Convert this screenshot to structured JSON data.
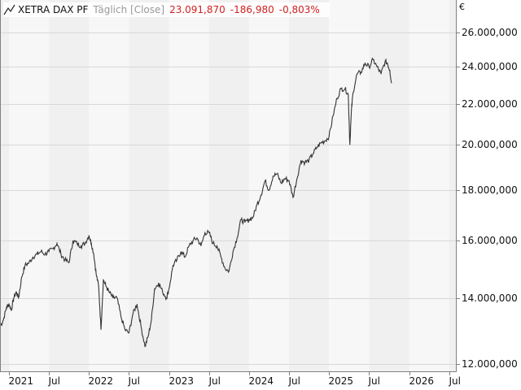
{
  "header": {
    "instrument": "XETRA DAX PF",
    "frequency": "Täglich [Close]",
    "last": "23.091,870",
    "change": "-186,980",
    "change_pct": "-0,803%",
    "icon": "line-chart-icon"
  },
  "colors": {
    "line": "#333333",
    "change": "#d42020",
    "band_dark": "#f0f0f0",
    "band_light": "#f7f7f7",
    "grid": "#d8d8d8",
    "frame": "#808080"
  },
  "chart_data": {
    "type": "line",
    "title": "XETRA DAX PF Täglich [Close]",
    "currency": "€",
    "yscale": "log",
    "ylim": [
      11800,
      26500
    ],
    "yticks": [
      12000,
      14000,
      16000,
      18000,
      20000,
      22000,
      24000,
      26000
    ],
    "ytick_labels": [
      "12.000,000",
      "14.000,000",
      "16.000,000",
      "18.000,000",
      "20.000,000",
      "22.000,000",
      "24.000,000",
      "26.000,000"
    ],
    "xtick_labels": [
      "2021",
      "Jul",
      "2022",
      "Jul",
      "2023",
      "Jul",
      "2024",
      "Jul",
      "2025",
      "Jul",
      "2026",
      "Jul"
    ],
    "xtick_t": [
      2021.0,
      2021.5,
      2022.0,
      2022.5,
      2023.0,
      2023.5,
      2024.0,
      2024.5,
      2025.0,
      2025.5,
      2026.0,
      2026.5
    ],
    "series": [
      {
        "name": "XETRA DAX PF",
        "t": [
          2020.89,
          2020.93,
          2020.97,
          2021.0,
          2021.03,
          2021.06,
          2021.09,
          2021.12,
          2021.16,
          2021.2,
          2021.25,
          2021.3,
          2021.35,
          2021.4,
          2021.45,
          2021.5,
          2021.55,
          2021.6,
          2021.65,
          2021.7,
          2021.75,
          2021.8,
          2021.85,
          2021.9,
          2021.95,
          2022.0,
          2022.03,
          2022.06,
          2022.09,
          2022.12,
          2022.15,
          2022.18,
          2022.21,
          2022.25,
          2022.3,
          2022.35,
          2022.4,
          2022.45,
          2022.5,
          2022.55,
          2022.6,
          2022.65,
          2022.7,
          2022.74,
          2022.78,
          2022.82,
          2022.87,
          2022.92,
          2022.97,
          2023.0,
          2023.05,
          2023.1,
          2023.15,
          2023.2,
          2023.25,
          2023.3,
          2023.35,
          2023.4,
          2023.45,
          2023.5,
          2023.55,
          2023.6,
          2023.65,
          2023.7,
          2023.75,
          2023.8,
          2023.85,
          2023.9,
          2023.95,
          2024.0,
          2024.05,
          2024.1,
          2024.15,
          2024.2,
          2024.25,
          2024.3,
          2024.35,
          2024.4,
          2024.45,
          2024.5,
          2024.55,
          2024.6,
          2024.65,
          2024.7,
          2024.75,
          2024.8,
          2024.85,
          2024.9,
          2024.95,
          2025.0,
          2025.05,
          2025.1,
          2025.15,
          2025.2,
          2025.24,
          2025.26,
          2025.28,
          2025.3,
          2025.35,
          2025.4,
          2025.45,
          2025.5,
          2025.55,
          2025.6,
          2025.65,
          2025.7,
          2025.73,
          2025.76,
          2025.78
        ],
        "values": [
          13100,
          13300,
          13700,
          13800,
          13600,
          14000,
          14200,
          14000,
          14700,
          15100,
          15200,
          15400,
          15500,
          15600,
          15500,
          15600,
          15700,
          15900,
          15500,
          15300,
          15200,
          16000,
          15900,
          15800,
          15900,
          16200,
          15900,
          15500,
          14800,
          14400,
          13000,
          14600,
          14400,
          14200,
          14000,
          14000,
          13400,
          13000,
          12900,
          13500,
          13800,
          13100,
          12500,
          12800,
          13300,
          14300,
          14500,
          14200,
          14000,
          14300,
          15100,
          15300,
          15600,
          15400,
          15800,
          16000,
          16100,
          15800,
          16300,
          16300,
          15900,
          15800,
          15400,
          15000,
          14900,
          15600,
          16100,
          16800,
          16700,
          16800,
          16900,
          17400,
          17800,
          18400,
          18000,
          18600,
          18700,
          18300,
          18500,
          18400,
          17700,
          18500,
          19300,
          19200,
          19300,
          19600,
          19900,
          20100,
          20200,
          20400,
          21400,
          22300,
          22800,
          22800,
          22500,
          20000,
          21700,
          22600,
          23600,
          23700,
          24200,
          24000,
          24400,
          24000,
          23600,
          24300,
          24200,
          23800,
          23100
        ]
      }
    ],
    "last_value": 23091.87,
    "change": -186.98,
    "change_pct": -0.803
  }
}
